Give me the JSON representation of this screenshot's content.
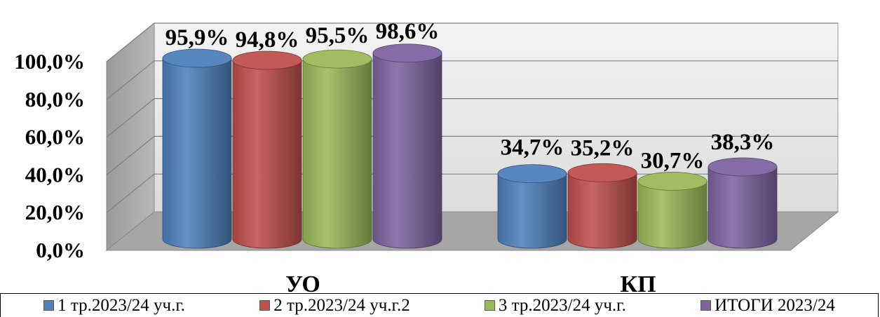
{
  "chart_data": {
    "type": "bar",
    "style": "3d-cylinder",
    "categories": [
      "УО",
      "КП"
    ],
    "series": [
      {
        "name": "1 тр.2023/24 уч.г.",
        "values": [
          95.9,
          34.7
        ],
        "labels": [
          "95,9%",
          "34,7%"
        ],
        "color": "#4f81bd"
      },
      {
        "name": "2 тр.2023/24 уч.г.2",
        "values": [
          94.8,
          35.2
        ],
        "labels": [
          "94,8%",
          "35,2%"
        ],
        "color": "#c0504d"
      },
      {
        "name": "3 тр.2023/24 уч.г.",
        "values": [
          95.5,
          30.7
        ],
        "labels": [
          "95,5%",
          "30,7%"
        ],
        "color": "#9bbb59"
      },
      {
        "name": "ИТОГИ 2023/24",
        "values": [
          98.6,
          38.3
        ],
        "labels": [
          "98,6%",
          "38,3%"
        ],
        "color": "#8064a2"
      }
    ],
    "y_ticks": [
      "0,0%",
      "20,0%",
      "40,0%",
      "60,0%",
      "80,0%",
      "100,0%"
    ],
    "ylim": [
      0,
      100
    ],
    "grid": true,
    "legend": "bottom",
    "title": "",
    "xlabel": "",
    "ylabel": ""
  }
}
